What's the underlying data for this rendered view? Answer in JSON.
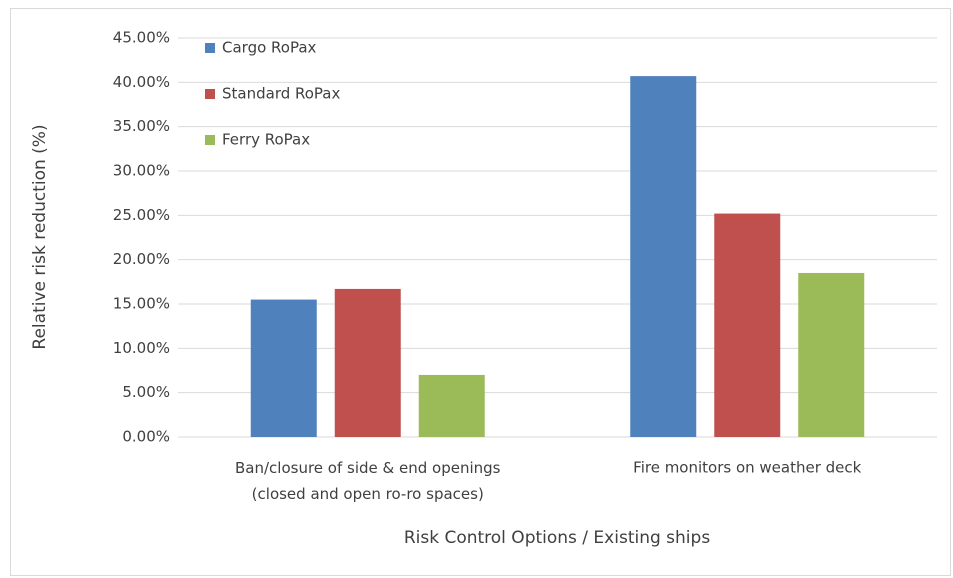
{
  "chart_data": {
    "type": "bar",
    "categories": [
      "Ban/closure of side & end openings\n(closed and open ro-ro spaces)",
      "Fire monitors on weather deck"
    ],
    "series": [
      {
        "name": "Cargo RoPax",
        "color": "#4f81bd",
        "values": [
          15.5,
          40.7
        ]
      },
      {
        "name": "Standard RoPax",
        "color": "#c0504d",
        "values": [
          16.7,
          25.2
        ]
      },
      {
        "name": "Ferry RoPax",
        "color": "#9bbb59",
        "values": [
          7.0,
          18.5
        ]
      }
    ],
    "ylabel": "Relative risk reduction (%)",
    "xlabel": "Risk Control Options / Existing ships",
    "ylim": [
      0,
      45
    ],
    "yticks": [
      {
        "value": 0,
        "label": "0.00%"
      },
      {
        "value": 5,
        "label": "5.00%"
      },
      {
        "value": 10,
        "label": "10.00%"
      },
      {
        "value": 15,
        "label": "15.00%"
      },
      {
        "value": 20,
        "label": "20.00%"
      },
      {
        "value": 25,
        "label": "25.00%"
      },
      {
        "value": 30,
        "label": "30.00%"
      },
      {
        "value": 35,
        "label": "35.00%"
      },
      {
        "value": 40,
        "label": "40.00%"
      },
      {
        "value": 45,
        "label": "45.00%"
      }
    ],
    "grid": true,
    "legend": "upper-left"
  }
}
